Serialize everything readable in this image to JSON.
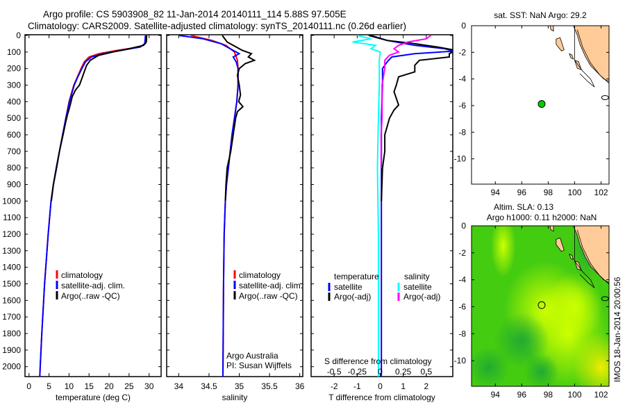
{
  "title_line1": "Argo profile: CS 5903908_82 11-Jan-2014 20140111_114 5.88S 97.505E",
  "title_line2": "Climatology: CARS2009. Satellite-adjusted climatology: synTS_20140111.nc (0.26d earlier)",
  "colors": {
    "climatology": "#ff0000",
    "satellite": "#0000ff",
    "argo": "#000000",
    "s_satellite": "#00ffff",
    "s_argo": "#ff00ff",
    "land": "#ffcc99",
    "float": "#00cc00"
  },
  "depth_ticks": [
    0,
    100,
    200,
    300,
    400,
    500,
    600,
    700,
    800,
    900,
    1000,
    1100,
    1200,
    1300,
    1400,
    1500,
    1600,
    1700,
    1800,
    1900,
    2000
  ],
  "chart_data": [
    {
      "type": "line",
      "name": "temperature-profile",
      "xlabel": "temperature (deg C)",
      "xlim": [
        -1,
        33
      ],
      "ylim": [
        2060,
        0
      ],
      "xticks": [
        0,
        5,
        10,
        15,
        20,
        25,
        30
      ],
      "legend": [
        "climatology",
        "satellite-adj. clim.",
        "Argo(..raw -QC)"
      ],
      "series": [
        {
          "name": "climatology",
          "color": "#ff0000",
          "depth": [
            0,
            50,
            70,
            90,
            110,
            130,
            160,
            200,
            250,
            300,
            400,
            500,
            600,
            700,
            800,
            900,
            1000,
            1200,
            1500,
            1800,
            2000,
            2060
          ],
          "values": [
            29.3,
            29.1,
            27.5,
            22,
            17.5,
            15,
            13.8,
            13,
            12.1,
            11.2,
            10,
            9.2,
            8.4,
            7.6,
            6.8,
            6.1,
            5.5,
            4.8,
            3.9,
            3.2,
            2.8,
            2.7
          ]
        },
        {
          "name": "satellite-adj. clim.",
          "color": "#0000ff",
          "depth": [
            0,
            50,
            70,
            90,
            110,
            130,
            160,
            200,
            250,
            300,
            400,
            500,
            600,
            700,
            800,
            900,
            1000,
            1200,
            1500,
            1800,
            2000,
            2060
          ],
          "values": [
            29.1,
            28.9,
            27.8,
            23,
            18.5,
            15.6,
            14.1,
            13.2,
            12.2,
            11.3,
            10.1,
            9.2,
            8.4,
            7.6,
            6.8,
            6.1,
            5.5,
            4.8,
            3.9,
            3.2,
            2.8,
            2.7
          ]
        },
        {
          "name": "Argo(..raw -QC)",
          "color": "#000000",
          "depth": [
            0,
            40,
            60,
            80,
            100,
            120,
            150,
            180,
            220,
            260,
            300,
            330,
            370,
            420,
            480,
            520,
            600,
            700,
            800,
            900,
            1000
          ],
          "values": [
            29.4,
            29.3,
            28.6,
            25,
            21,
            17.4,
            15.3,
            14.4,
            13.8,
            13.2,
            12.6,
            11.6,
            10.8,
            10.3,
            9.6,
            9.2,
            8.5,
            7.6,
            6.9,
            6.1,
            5.6
          ]
        }
      ]
    },
    {
      "type": "line",
      "name": "salinity-profile",
      "xlabel": "salinity",
      "xlim": [
        33.8,
        36.05
      ],
      "ylim": [
        2060,
        0
      ],
      "xticks": [
        34,
        34.5,
        35,
        35.5,
        36
      ],
      "legend": [
        "climatology",
        "satellite-adj. clim.",
        "Argo(..raw -QC)"
      ],
      "annotation": [
        "Argo Australia",
        "PI: Susan Wijffels"
      ],
      "series": [
        {
          "name": "climatology",
          "color": "#ff0000",
          "depth": [
            0,
            30,
            60,
            100,
            150,
            200,
            300,
            400,
            500,
            600,
            700,
            800,
            900,
            1000,
            1200,
            1500,
            2060
          ],
          "values": [
            34.2,
            34.55,
            34.78,
            34.92,
            34.97,
            34.98,
            34.98,
            34.96,
            34.92,
            34.88,
            34.85,
            34.82,
            34.79,
            34.77,
            34.75,
            34.74,
            34.73
          ]
        },
        {
          "name": "satellite-adj. clim.",
          "color": "#0000ff",
          "depth": [
            0,
            20,
            50,
            80,
            110,
            130,
            160,
            200,
            300,
            400,
            500,
            600,
            700,
            800,
            900,
            1000,
            1200,
            1500,
            2060
          ],
          "values": [
            34.0,
            34.4,
            34.7,
            34.85,
            35.0,
            34.9,
            34.95,
            34.98,
            34.98,
            34.96,
            34.92,
            34.88,
            34.85,
            34.82,
            34.79,
            34.77,
            34.75,
            34.74,
            34.73
          ]
        },
        {
          "name": "Argo(..raw -QC)",
          "color": "#000000",
          "depth": [
            0,
            40,
            60,
            90,
            110,
            130,
            150,
            170,
            200,
            240,
            300,
            360,
            400,
            430,
            460,
            500,
            600,
            700,
            750,
            800,
            900,
            1000
          ],
          "values": [
            34.72,
            34.8,
            34.9,
            35.05,
            35.2,
            35.15,
            35.25,
            35.1,
            35.0,
            34.97,
            35.0,
            35.02,
            34.99,
            35.06,
            34.97,
            34.94,
            34.9,
            34.86,
            34.83,
            34.8,
            34.78,
            34.77
          ]
        }
      ]
    },
    {
      "type": "line",
      "name": "difference-profile",
      "xlabel": "T difference from climatology",
      "xlabel2": "S difference from climatology",
      "xlim": [
        -3,
        3.15
      ],
      "ylim": [
        2060,
        0
      ],
      "xticks": [
        -2,
        -1,
        0,
        1,
        2
      ],
      "xticks2": [
        -0.5,
        -0.25,
        0,
        0.25,
        0.5
      ],
      "xtick2_labels": [
        "-0.5",
        "-0.25",
        "0",
        "0.25",
        "0.5"
      ],
      "legend_headers": [
        "temperature",
        "salinity"
      ],
      "legend": [
        "satellite",
        "Argo(-adj)",
        "satellite",
        "Argo(-adj)"
      ],
      "series": [
        {
          "name": "T satellite",
          "color": "#0000ff",
          "depth": [
            0,
            30,
            60,
            80,
            95,
            110,
            130,
            160,
            200,
            300,
            500,
            800,
            1200,
            2060
          ],
          "values": [
            -0.4,
            0.3,
            1.5,
            2.8,
            3.2,
            1.5,
            0.5,
            0.3,
            0.1,
            0.1,
            0.05,
            0.05,
            0.05,
            0.05
          ]
        },
        {
          "name": "T Argo(-adj)",
          "color": "#000000",
          "depth": [
            0,
            30,
            50,
            70,
            90,
            110,
            130,
            150,
            180,
            220,
            250,
            300,
            340,
            380,
            420,
            450,
            500,
            550,
            600,
            700,
            800,
            1000
          ],
          "values": [
            -0.5,
            0.3,
            1.5,
            2.5,
            3.3,
            3.0,
            3.0,
            1.7,
            1.5,
            1.5,
            0.8,
            0.7,
            0.6,
            0.7,
            0.8,
            0.6,
            0.4,
            0.3,
            0.2,
            0.2,
            0.1,
            0.05
          ]
        },
        {
          "name": "S satellite",
          "color": "#00ffff",
          "depth": [
            0,
            20,
            40,
            60,
            80,
            100,
            150,
            300,
            500,
            800,
            1200,
            2060
          ],
          "values": [
            -0.25,
            -0.1,
            -0.3,
            -0.05,
            -0.1,
            0,
            -0.01,
            -0.01,
            -0.02,
            -0.03,
            -0.02,
            -0.02
          ]
        },
        {
          "name": "S Argo(-adj)",
          "color": "#ff00ff",
          "depth": [
            0,
            20,
            40,
            60,
            80,
            100,
            120,
            150,
            200,
            300,
            400,
            500,
            600,
            700,
            800
          ],
          "values": [
            0.55,
            0.5,
            0.3,
            0.2,
            0.15,
            0.2,
            0.1,
            0.05,
            0.05,
            0.02,
            0.02,
            0.02,
            0.01,
            0.01,
            0.01
          ]
        }
      ]
    },
    {
      "type": "scatter",
      "name": "sst-map",
      "title": "sat. SST: NaN Argo: 29.2",
      "xlim": [
        92.2,
        102.6
      ],
      "ylim": [
        -11.9,
        0
      ],
      "xticks": [
        94,
        96,
        98,
        100,
        102
      ],
      "yticks": [
        0,
        -2,
        -4,
        -6,
        -8,
        -10
      ],
      "float_position": {
        "lon": 97.505,
        "lat": -5.88
      }
    },
    {
      "type": "heatmap",
      "name": "altimetry-map",
      "title_line1": "Altim. SLA: 0.13",
      "title_line2": "Argo h1000: 0.11 h2000: NaN",
      "xlim": [
        92.2,
        102.6
      ],
      "ylim": [
        -11.9,
        0
      ],
      "xticks": [
        94,
        96,
        98,
        100,
        102
      ],
      "yticks": [
        0,
        -2,
        -4,
        -6,
        -8,
        -10
      ],
      "float_position": {
        "lon": 97.505,
        "lat": -5.88
      }
    }
  ],
  "footer_stamp": "IMOS 18-Jan-2014 20:00:56"
}
